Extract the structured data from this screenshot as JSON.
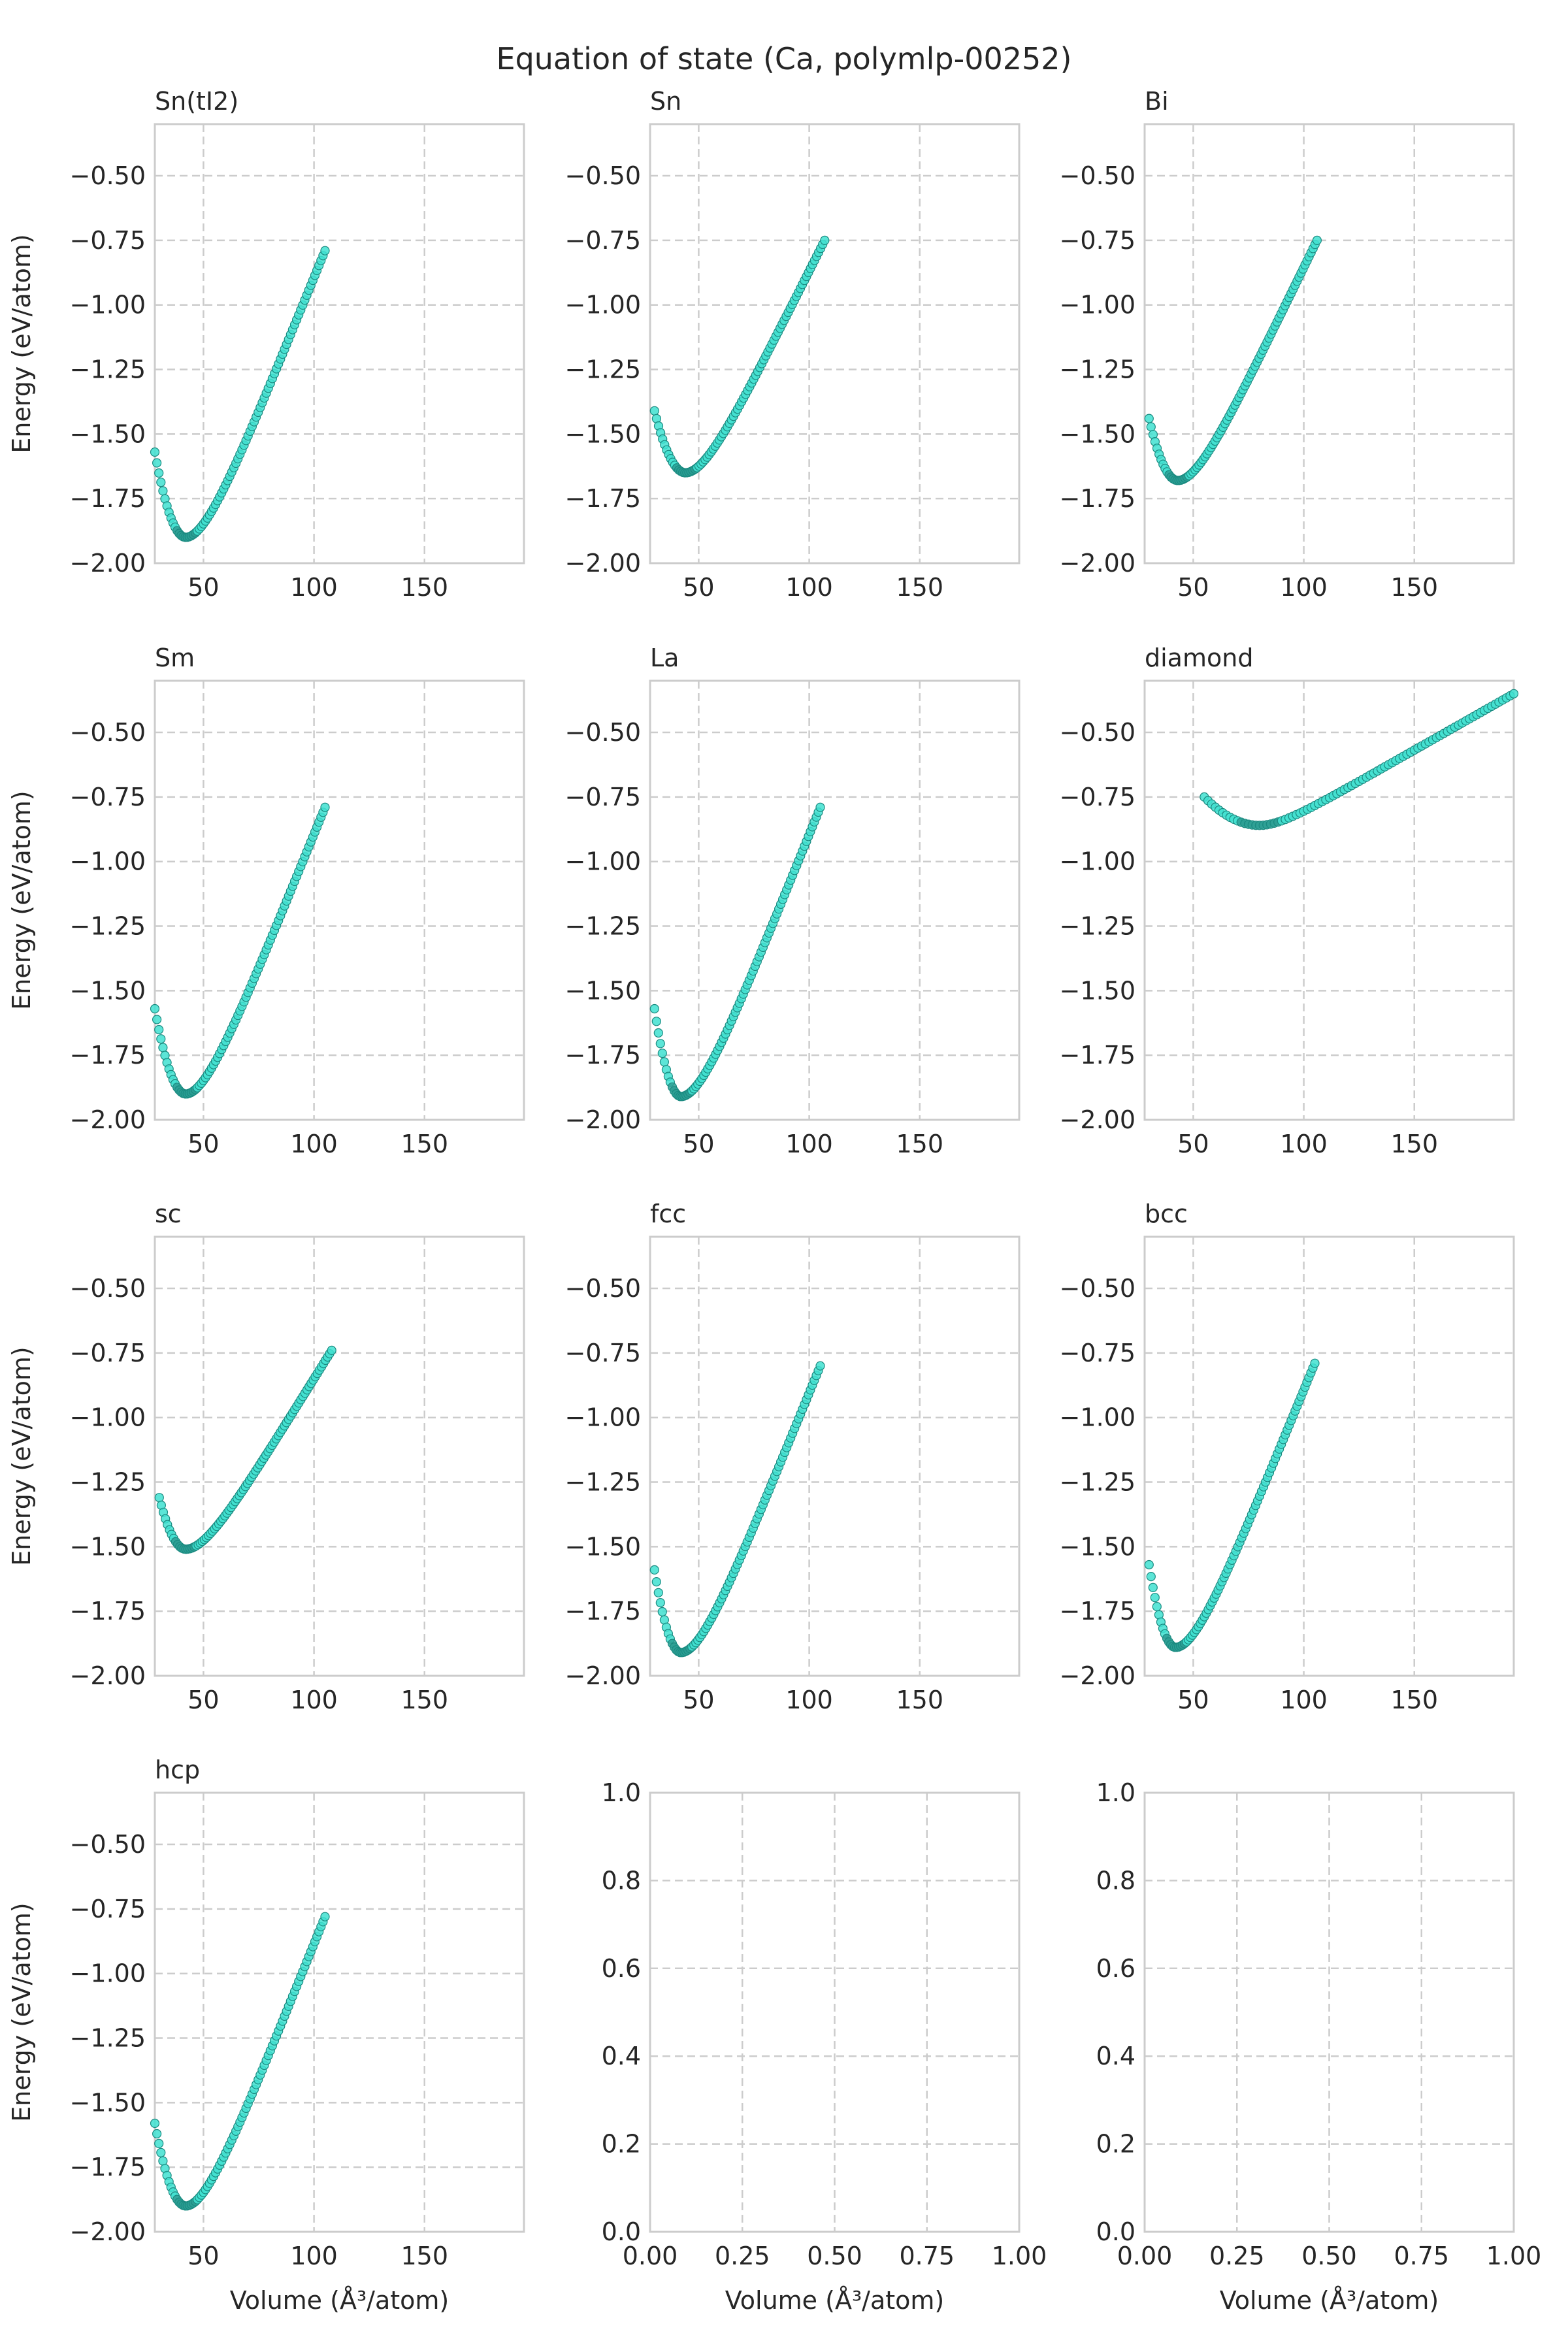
{
  "figure": {
    "title": "Equation of state (Ca, polymlp-00252)",
    "ylabel": "Energy (eV/atom)",
    "xlabel": "Volume (Å³/atom)",
    "marker_color": "#40E0D0",
    "marker_edge": "#1a8a80",
    "grid_color": "#cccccc",
    "spine_color": "#cccccc"
  },
  "chart_data": [
    {
      "type": "scatter",
      "title": "Sn(tI2)",
      "xlim": [
        28,
        195
      ],
      "ylim": [
        -2.0,
        -0.3
      ],
      "xticks": [
        50,
        100,
        150
      ],
      "yticks": [
        -2.0,
        -1.75,
        -1.5,
        -1.25,
        -1.0,
        -0.75,
        -0.5
      ],
      "ytick_labels": [
        "−2.00",
        "−1.75",
        "−1.50",
        "−1.25",
        "−1.00",
        "−0.75",
        "−0.50"
      ],
      "curve": {
        "v0": 42,
        "e0": -1.9,
        "v_start": 28,
        "e_start": -1.57,
        "v_end": 105,
        "e_end": -0.79
      }
    },
    {
      "type": "scatter",
      "title": "Sn",
      "xlim": [
        28,
        195
      ],
      "ylim": [
        -2.0,
        -0.3
      ],
      "xticks": [
        50,
        100,
        150
      ],
      "yticks": [
        -2.0,
        -1.75,
        -1.5,
        -1.25,
        -1.0,
        -0.75,
        -0.5
      ],
      "ytick_labels": [
        "−2.00",
        "−1.75",
        "−1.50",
        "−1.25",
        "−1.00",
        "−0.75",
        "−0.50"
      ],
      "curve": {
        "v0": 44,
        "e0": -1.65,
        "v_start": 30,
        "e_start": -1.41,
        "v_end": 107,
        "e_end": -0.75
      }
    },
    {
      "type": "scatter",
      "title": "Bi",
      "xlim": [
        28,
        195
      ],
      "ylim": [
        -2.0,
        -0.3
      ],
      "xticks": [
        50,
        100,
        150
      ],
      "yticks": [
        -2.0,
        -1.75,
        -1.5,
        -1.25,
        -1.0,
        -0.75,
        -0.5
      ],
      "ytick_labels": [
        "−2.00",
        "−1.75",
        "−1.50",
        "−1.25",
        "−1.00",
        "−0.75",
        "−0.50"
      ],
      "curve": {
        "v0": 43,
        "e0": -1.68,
        "v_start": 30,
        "e_start": -1.44,
        "v_end": 106,
        "e_end": -0.75
      }
    },
    {
      "type": "scatter",
      "title": "Sm",
      "xlim": [
        28,
        195
      ],
      "ylim": [
        -2.0,
        -0.3
      ],
      "xticks": [
        50,
        100,
        150
      ],
      "yticks": [
        -2.0,
        -1.75,
        -1.5,
        -1.25,
        -1.0,
        -0.75,
        -0.5
      ],
      "ytick_labels": [
        "−2.00",
        "−1.75",
        "−1.50",
        "−1.25",
        "−1.00",
        "−0.75",
        "−0.50"
      ],
      "curve": {
        "v0": 42,
        "e0": -1.9,
        "v_start": 28,
        "e_start": -1.57,
        "v_end": 105,
        "e_end": -0.79
      }
    },
    {
      "type": "scatter",
      "title": "La",
      "xlim": [
        28,
        195
      ],
      "ylim": [
        -2.0,
        -0.3
      ],
      "xticks": [
        50,
        100,
        150
      ],
      "yticks": [
        -2.0,
        -1.75,
        -1.5,
        -1.25,
        -1.0,
        -0.75,
        -0.5
      ],
      "ytick_labels": [
        "−2.00",
        "−1.75",
        "−1.50",
        "−1.25",
        "−1.00",
        "−0.75",
        "−0.50"
      ],
      "curve": {
        "v0": 42,
        "e0": -1.91,
        "v_start": 30,
        "e_start": -1.57,
        "v_end": 105,
        "e_end": -0.79
      }
    },
    {
      "type": "scatter",
      "title": "diamond",
      "xlim": [
        28,
        195
      ],
      "ylim": [
        -2.0,
        -0.3
      ],
      "xticks": [
        50,
        100,
        150
      ],
      "yticks": [
        -2.0,
        -1.75,
        -1.5,
        -1.25,
        -1.0,
        -0.75,
        -0.5
      ],
      "ytick_labels": [
        "−2.00",
        "−1.75",
        "−1.50",
        "−1.25",
        "−1.00",
        "−0.75",
        "−0.50"
      ],
      "curve": {
        "v0": 80,
        "e0": -0.86,
        "v_start": 55,
        "e_start": -0.75,
        "v_end": 195,
        "e_end": -0.35
      }
    },
    {
      "type": "scatter",
      "title": "sc",
      "xlim": [
        28,
        195
      ],
      "ylim": [
        -2.0,
        -0.3
      ],
      "xticks": [
        50,
        100,
        150
      ],
      "yticks": [
        -2.0,
        -1.75,
        -1.5,
        -1.25,
        -1.0,
        -0.75,
        -0.5
      ],
      "ytick_labels": [
        "−2.00",
        "−1.75",
        "−1.50",
        "−1.25",
        "−1.00",
        "−0.75",
        "−0.50"
      ],
      "curve": {
        "v0": 42,
        "e0": -1.51,
        "v_start": 30,
        "e_start": -1.31,
        "v_end": 108,
        "e_end": -0.74
      }
    },
    {
      "type": "scatter",
      "title": "fcc",
      "xlim": [
        28,
        195
      ],
      "ylim": [
        -2.0,
        -0.3
      ],
      "xticks": [
        50,
        100,
        150
      ],
      "yticks": [
        -2.0,
        -1.75,
        -1.5,
        -1.25,
        -1.0,
        -0.75,
        -0.5
      ],
      "ytick_labels": [
        "−2.00",
        "−1.75",
        "−1.50",
        "−1.25",
        "−1.00",
        "−0.75",
        "−0.50"
      ],
      "curve": {
        "v0": 42,
        "e0": -1.91,
        "v_start": 30,
        "e_start": -1.59,
        "v_end": 105,
        "e_end": -0.8
      }
    },
    {
      "type": "scatter",
      "title": "bcc",
      "xlim": [
        28,
        195
      ],
      "ylim": [
        -2.0,
        -0.3
      ],
      "xticks": [
        50,
        100,
        150
      ],
      "yticks": [
        -2.0,
        -1.75,
        -1.5,
        -1.25,
        -1.0,
        -0.75,
        -0.5
      ],
      "ytick_labels": [
        "−2.00",
        "−1.75",
        "−1.50",
        "−1.25",
        "−1.00",
        "−0.75",
        "−0.50"
      ],
      "curve": {
        "v0": 42,
        "e0": -1.89,
        "v_start": 30,
        "e_start": -1.57,
        "v_end": 105,
        "e_end": -0.79
      }
    },
    {
      "type": "scatter",
      "title": "hcp",
      "xlim": [
        28,
        195
      ],
      "ylim": [
        -2.0,
        -0.3
      ],
      "xticks": [
        50,
        100,
        150
      ],
      "yticks": [
        -2.0,
        -1.75,
        -1.5,
        -1.25,
        -1.0,
        -0.75,
        -0.5
      ],
      "ytick_labels": [
        "−2.00",
        "−1.75",
        "−1.50",
        "−1.25",
        "−1.00",
        "−0.75",
        "−0.50"
      ],
      "curve": {
        "v0": 42,
        "e0": -1.9,
        "v_start": 28,
        "e_start": -1.58,
        "v_end": 105,
        "e_end": -0.78
      }
    },
    {
      "type": "scatter",
      "title": "",
      "xlim": [
        0,
        1
      ],
      "ylim": [
        0,
        1
      ],
      "xticks": [
        0,
        0.25,
        0.5,
        0.75,
        1
      ],
      "xtick_labels": [
        "0.00",
        "0.25",
        "0.50",
        "0.75",
        "1.00"
      ],
      "yticks": [
        0,
        0.2,
        0.4,
        0.6,
        0.8,
        1.0
      ],
      "ytick_labels": [
        "0.0",
        "0.2",
        "0.4",
        "0.6",
        "0.8",
        "1.0"
      ],
      "curve": null
    },
    {
      "type": "scatter",
      "title": "",
      "xlim": [
        0,
        1
      ],
      "ylim": [
        0,
        1
      ],
      "xticks": [
        0,
        0.25,
        0.5,
        0.75,
        1
      ],
      "xtick_labels": [
        "0.00",
        "0.25",
        "0.50",
        "0.75",
        "1.00"
      ],
      "yticks": [
        0,
        0.2,
        0.4,
        0.6,
        0.8,
        1.0
      ],
      "ytick_labels": [
        "0.0",
        "0.2",
        "0.4",
        "0.6",
        "0.8",
        "1.0"
      ],
      "curve": null
    }
  ]
}
